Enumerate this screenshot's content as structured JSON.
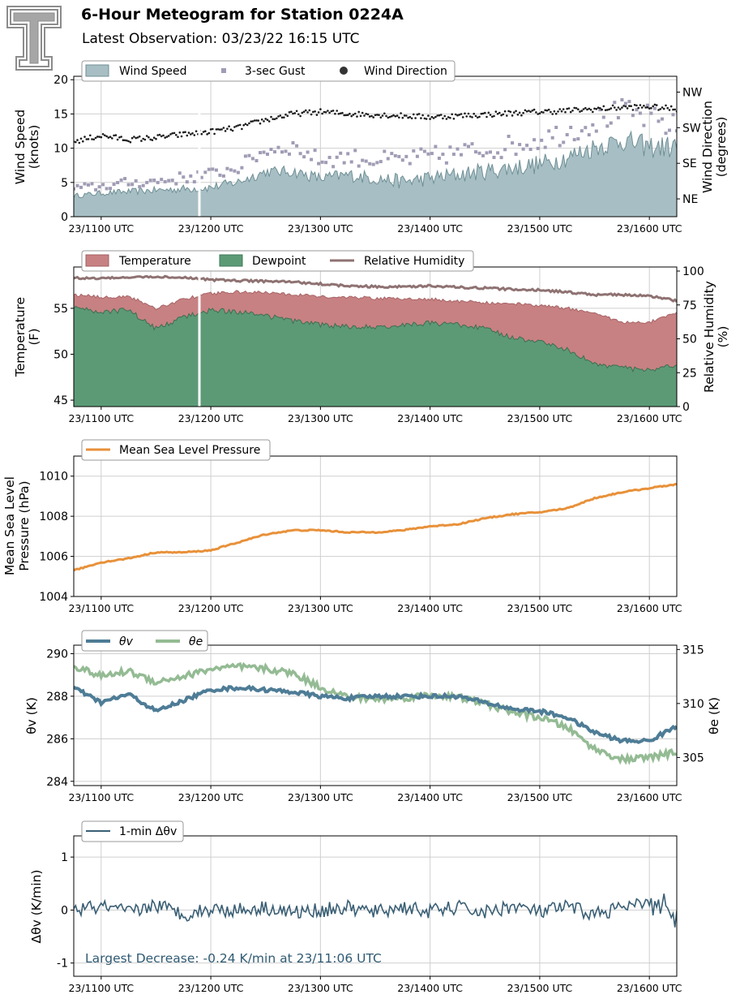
{
  "header": {
    "title": "6-Hour Meteogram for Station 0224A",
    "subtitle": "Latest Observation: 03/23/22 16:15 UTC"
  },
  "colors": {
    "wind_fill": "#a7bfc4",
    "wind_edge": "#6f8f96",
    "gust": "#a09cb5",
    "direction": "#1a1a1a",
    "temperature": "#c78182",
    "dewpoint": "#5c9a76",
    "humidity": "#8f7272",
    "pressure": "#e8913a",
    "theta_v": "#4e7c96",
    "theta_e": "#94bb94",
    "delta": "#3a5f75",
    "note": "#2f5a73"
  },
  "chart_data": [
    {
      "type": "area",
      "id": "wind",
      "ylabel": [
        "Wind Speed",
        "(knots)"
      ],
      "y2label": [
        "Wind Direction",
        "(degrees)"
      ],
      "ylim": [
        0,
        20.5
      ],
      "yticks": [
        0,
        5,
        10,
        15,
        20
      ],
      "y2ticks": [
        "NE",
        "SE",
        "SW",
        "NW"
      ],
      "xticks": [
        "23/1100 UTC",
        "23/1200 UTC",
        "23/1300 UTC",
        "23/1400 UTC",
        "23/1500 UTC",
        "23/1600 UTC"
      ],
      "legend": [
        "Wind Speed",
        "3-sec Gust",
        "Wind Direction"
      ],
      "legend_position": "top-left",
      "series": [
        {
          "name": "Wind Speed",
          "x": [
            10.75,
            11.0,
            11.25,
            11.5,
            11.75,
            12.0,
            12.25,
            12.5,
            12.75,
            13.0,
            13.25,
            13.5,
            13.75,
            14.0,
            14.25,
            14.5,
            14.75,
            15.0,
            15.25,
            15.5,
            15.75,
            16.0,
            16.25
          ],
          "values": [
            3,
            3.4,
            3.6,
            3.8,
            4,
            4.2,
            5,
            6.5,
            6.5,
            5.5,
            6,
            5.5,
            5,
            5.5,
            6,
            6.5,
            7,
            7.5,
            8.5,
            10,
            11,
            10,
            10
          ]
        },
        {
          "name": "3-sec Gust",
          "x": [
            10.75,
            11.0,
            11.25,
            11.5,
            11.75,
            12.0,
            12.25,
            12.5,
            12.75,
            13.0,
            13.25,
            13.5,
            13.75,
            14.0,
            14.25,
            14.5,
            14.75,
            15.0,
            15.25,
            15.5,
            15.75,
            16.0,
            16.25
          ],
          "values": [
            4,
            4.3,
            4.8,
            5,
            5.5,
            6,
            7,
            9.5,
            10,
            8,
            8.5,
            8,
            8,
            8.5,
            9,
            9.5,
            10,
            11,
            12,
            13.5,
            15,
            14,
            12.5
          ]
        },
        {
          "name": "Wind Direction",
          "x": [
            10.75,
            11.0,
            11.25,
            11.5,
            11.75,
            12.0,
            12.25,
            12.5,
            12.75,
            13.0,
            13.25,
            13.5,
            13.75,
            14.0,
            14.25,
            14.5,
            14.75,
            15.0,
            15.25,
            15.5,
            15.75,
            16.0,
            16.25
          ],
          "values": [
            190,
            205,
            195,
            200,
            208,
            215,
            225,
            245,
            260,
            265,
            260,
            258,
            255,
            252,
            255,
            258,
            262,
            265,
            268,
            272,
            276,
            278,
            272
          ]
        }
      ]
    },
    {
      "type": "area",
      "id": "temperature",
      "ylabel": [
        "Temperature",
        "(F)"
      ],
      "y2label": [
        "Relative Humidity",
        "(%)"
      ],
      "ylim": [
        44.3,
        59.5
      ],
      "y2lim": [
        0,
        103
      ],
      "yticks": [
        45,
        50,
        55
      ],
      "y2ticks": [
        0,
        25,
        50,
        75,
        100
      ],
      "xticks": [
        "23/1100 UTC",
        "23/1200 UTC",
        "23/1300 UTC",
        "23/1400 UTC",
        "23/1500 UTC",
        "23/1600 UTC"
      ],
      "legend": [
        "Temperature",
        "Dewpoint",
        "Relative Humidity"
      ],
      "legend_position": "top-left",
      "series": [
        {
          "name": "Temperature",
          "x": [
            10.75,
            11.0,
            11.25,
            11.5,
            11.75,
            12.0,
            12.25,
            12.5,
            12.75,
            13.0,
            13.25,
            13.5,
            13.75,
            14.0,
            14.25,
            14.5,
            14.75,
            15.0,
            15.25,
            15.5,
            15.75,
            16.0,
            16.25
          ],
          "values": [
            56.5,
            56.2,
            56.3,
            55,
            56,
            56.6,
            56.8,
            56.7,
            56.5,
            56.3,
            56.2,
            56.1,
            56,
            56,
            55.8,
            55.6,
            55.5,
            55.3,
            55,
            54.5,
            53.5,
            53.5,
            54.5
          ]
        },
        {
          "name": "Dewpoint",
          "x": [
            10.75,
            11.0,
            11.25,
            11.5,
            11.75,
            12.0,
            12.25,
            12.5,
            12.75,
            13.0,
            13.25,
            13.5,
            13.75,
            14.0,
            14.25,
            14.5,
            14.75,
            15.0,
            15.25,
            15.5,
            15.75,
            16.0,
            16.25
          ],
          "values": [
            55.2,
            54.6,
            54.8,
            52.8,
            54,
            54.8,
            54.6,
            54.2,
            53.6,
            53.2,
            53,
            53,
            53.2,
            53.4,
            53.2,
            52.8,
            51.8,
            51.4,
            50.5,
            49,
            48.5,
            48.2,
            48.8
          ]
        },
        {
          "name": "Relative Humidity",
          "x": [
            10.75,
            11.0,
            11.25,
            11.5,
            11.75,
            12.0,
            12.25,
            12.5,
            12.75,
            13.0,
            13.25,
            13.5,
            13.75,
            14.0,
            14.25,
            14.5,
            14.75,
            15.0,
            15.25,
            15.5,
            15.75,
            16.0,
            16.25
          ],
          "values": [
            95,
            94.5,
            95.5,
            95.8,
            95,
            93.5,
            93,
            92.5,
            92,
            90.5,
            89,
            88.5,
            88.5,
            89,
            88,
            87.5,
            86.5,
            86,
            84.5,
            82.5,
            82.5,
            81.5,
            78
          ]
        }
      ]
    },
    {
      "type": "line",
      "id": "pressure",
      "ylabel": [
        "Mean Sea Level",
        "Pressure (hPa)"
      ],
      "ylim": [
        1004,
        1011
      ],
      "yticks": [
        1004,
        1006,
        1008,
        1010
      ],
      "xticks": [
        "23/1100 UTC",
        "23/1200 UTC",
        "23/1300 UTC",
        "23/1400 UTC",
        "23/1500 UTC",
        "23/1600 UTC"
      ],
      "legend": [
        "Mean Sea Level Pressure"
      ],
      "legend_position": "top-left",
      "series": [
        {
          "name": "Mean Sea Level Pressure",
          "x": [
            10.75,
            11.0,
            11.25,
            11.5,
            11.75,
            12.0,
            12.25,
            12.5,
            12.75,
            13.0,
            13.25,
            13.5,
            13.75,
            14.0,
            14.25,
            14.5,
            14.75,
            15.0,
            15.25,
            15.5,
            15.75,
            16.0,
            16.25
          ],
          "values": [
            1005.3,
            1005.7,
            1005.9,
            1006.2,
            1006.2,
            1006.3,
            1006.7,
            1007.1,
            1007.3,
            1007.3,
            1007.2,
            1007.2,
            1007.3,
            1007.5,
            1007.6,
            1007.9,
            1008.1,
            1008.2,
            1008.4,
            1008.9,
            1009.2,
            1009.4,
            1009.6
          ]
        }
      ]
    },
    {
      "type": "line",
      "id": "theta",
      "ylabel": "θv (K)",
      "y2label": "θe (K)",
      "ylim": [
        283.8,
        290.4
      ],
      "y2lim": [
        302.4,
        315.4
      ],
      "yticks": [
        284,
        286,
        288,
        290
      ],
      "y2ticks": [
        305,
        310,
        315
      ],
      "xticks": [
        "23/1100 UTC",
        "23/1200 UTC",
        "23/1300 UTC",
        "23/1400 UTC",
        "23/1500 UTC",
        "23/1600 UTC"
      ],
      "legend": [
        "θv",
        "θe"
      ],
      "legend_position": "top-left",
      "series": [
        {
          "name": "θv",
          "x": [
            10.75,
            11.0,
            11.25,
            11.5,
            11.75,
            12.0,
            12.25,
            12.5,
            12.75,
            13.0,
            13.25,
            13.5,
            13.75,
            14.0,
            14.25,
            14.5,
            14.75,
            15.0,
            15.25,
            15.5,
            15.75,
            16.0,
            16.25
          ],
          "values": [
            288.4,
            287.7,
            288.1,
            287.3,
            287.8,
            288.3,
            288.4,
            288.3,
            288.2,
            288,
            287.9,
            288,
            288,
            288,
            288,
            287.7,
            287.4,
            287.3,
            287,
            286.3,
            285.9,
            285.9,
            286.6
          ]
        },
        {
          "name": "θe",
          "x": [
            10.75,
            11.0,
            11.25,
            11.5,
            11.75,
            12.0,
            12.25,
            12.5,
            12.75,
            13.0,
            13.25,
            13.5,
            13.75,
            14.0,
            14.25,
            14.5,
            14.75,
            15.0,
            15.25,
            15.5,
            15.75,
            16.0,
            16.25
          ],
          "values": [
            313.5,
            312.5,
            313,
            312,
            312.5,
            313.2,
            313.4,
            313.2,
            312.8,
            311.5,
            310.6,
            310.4,
            310.5,
            310.8,
            310.6,
            310,
            309.2,
            308.7,
            307.8,
            305.8,
            304.8,
            305,
            305.5
          ]
        }
      ]
    },
    {
      "type": "line",
      "id": "delta",
      "ylabel": "Δθv (K/min)",
      "ylim": [
        -1.25,
        1.4
      ],
      "yticks": [
        -1,
        0,
        1
      ],
      "xticks": [
        "23/1100 UTC",
        "23/1200 UTC",
        "23/1300 UTC",
        "23/1400 UTC",
        "23/1500 UTC",
        "23/1600 UTC"
      ],
      "legend": [
        "1-min Δθv"
      ],
      "legend_position": "top-left",
      "annotation": "Largest Decrease: -0.24 K/min at 23/11:06 UTC",
      "series": [
        {
          "name": "1-min Δθv",
          "x": [
            10.75,
            11.0,
            11.25,
            11.5,
            11.75,
            12.0,
            12.25,
            12.5,
            12.75,
            13.0,
            13.25,
            13.5,
            13.75,
            14.0,
            14.25,
            14.5,
            14.75,
            15.0,
            15.25,
            15.5,
            15.75,
            16.0,
            16.25
          ],
          "values": [
            0,
            0.06,
            -0.05,
            0.1,
            -0.08,
            0.02,
            0,
            0.05,
            -0.05,
            0,
            0.04,
            -0.04,
            0.06,
            -0.03,
            0.05,
            -0.05,
            0.08,
            -0.04,
            0.06,
            -0.08,
            0.05,
            0.1,
            -0.15
          ]
        }
      ]
    }
  ]
}
